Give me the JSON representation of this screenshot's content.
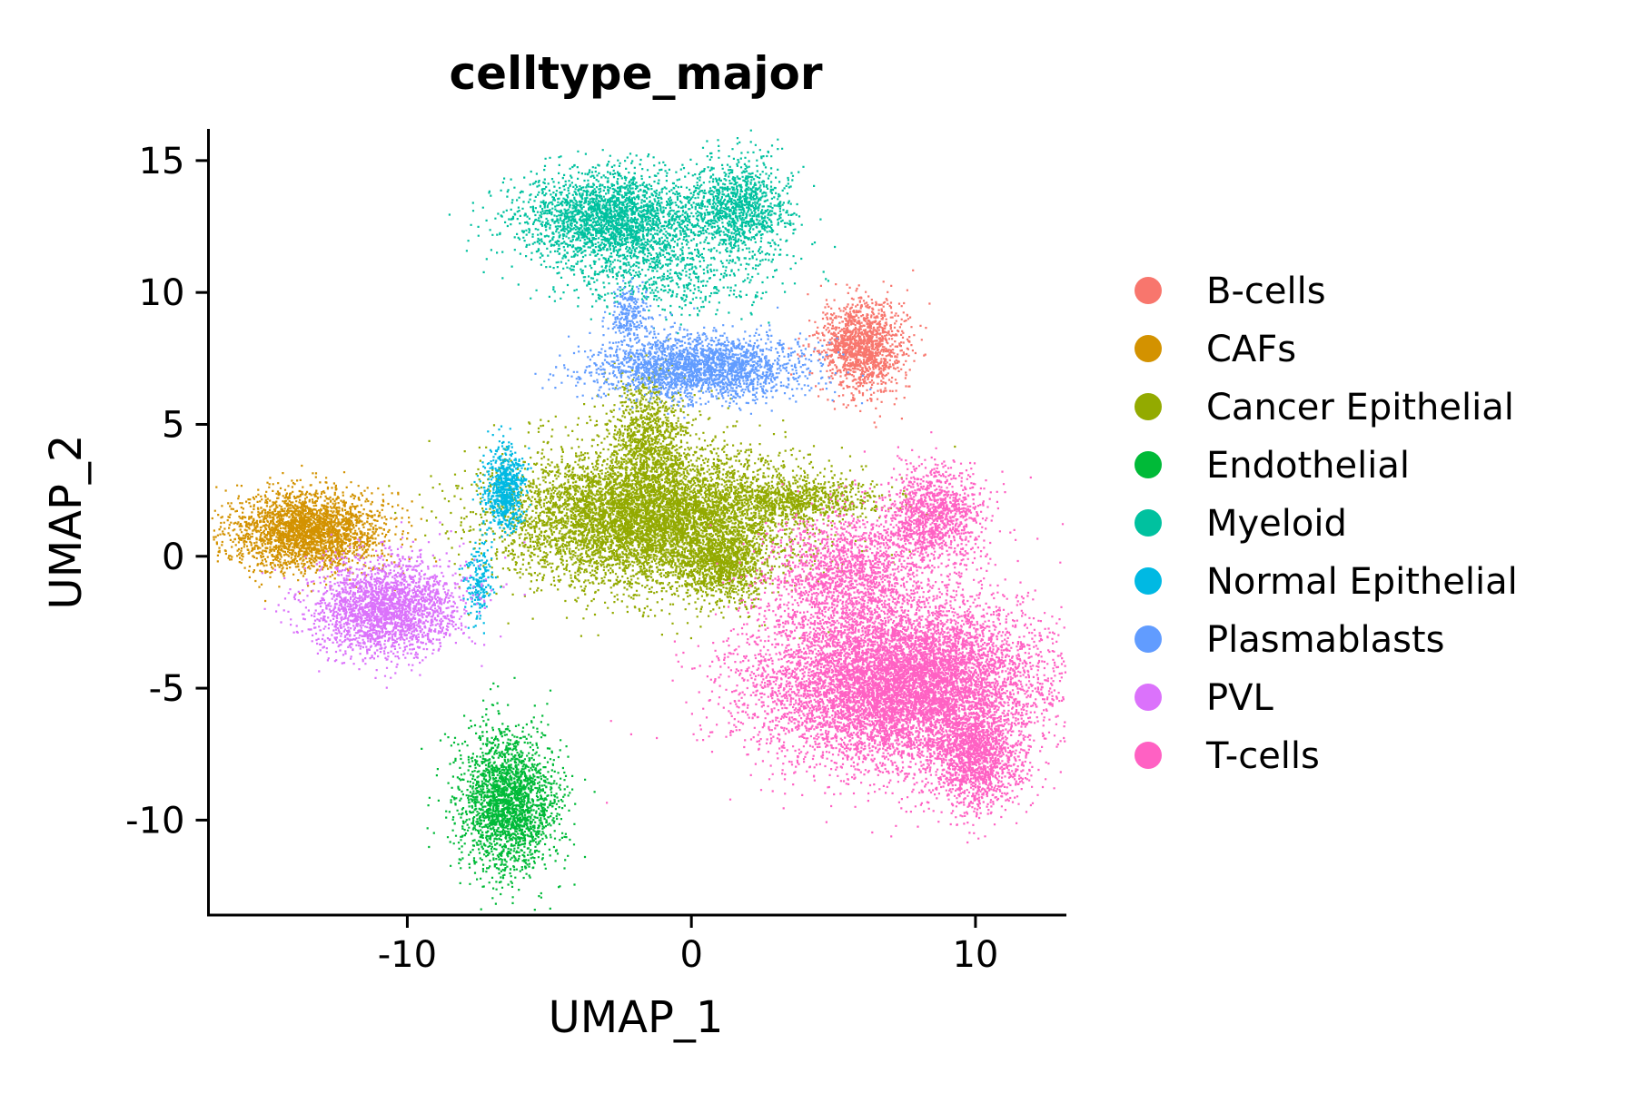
{
  "chart_data": {
    "type": "scatter",
    "title": "celltype_major",
    "xlabel": "UMAP_1",
    "ylabel": "UMAP_2",
    "xlim": [
      -17,
      13.2
    ],
    "ylim": [
      -13.6,
      16.2
    ],
    "x_ticks": [
      {
        "value": -10,
        "label": "-10"
      },
      {
        "value": 0,
        "label": "0"
      },
      {
        "value": 10,
        "label": "10"
      }
    ],
    "y_ticks": [
      {
        "value": -10,
        "label": "-10"
      },
      {
        "value": -5,
        "label": "-5"
      },
      {
        "value": 0,
        "label": "0"
      },
      {
        "value": 5,
        "label": "5"
      },
      {
        "value": 10,
        "label": "10"
      },
      {
        "value": 15,
        "label": "15"
      }
    ],
    "grid": false,
    "legend_position": "right",
    "series": [
      {
        "name": "B-cells",
        "color": "#F8766D",
        "clusters": [
          {
            "center": [
              6.0,
              8.0
            ],
            "spread": [
              0.75,
              0.85
            ],
            "n": 1400
          }
        ]
      },
      {
        "name": "CAFs",
        "color": "#D39200",
        "clusters": [
          {
            "center": [
              -13.5,
              1.0
            ],
            "spread": [
              1.3,
              0.75
            ],
            "n": 2600
          }
        ]
      },
      {
        "name": "Cancer Epithelial",
        "color": "#93AA00",
        "clusters": [
          {
            "center": [
              -1.5,
              1.5
            ],
            "spread": [
              2.6,
              1.3
            ],
            "n": 7000
          },
          {
            "center": [
              -1.5,
              4.6
            ],
            "spread": [
              0.7,
              1.2
            ],
            "n": 900
          },
          {
            "center": [
              3.8,
              2.2
            ],
            "spread": [
              1.4,
              0.4
            ],
            "n": 700
          },
          {
            "center": [
              1.0,
              -0.3
            ],
            "spread": [
              0.8,
              0.7
            ],
            "n": 900
          }
        ]
      },
      {
        "name": "Endothelial",
        "color": "#00BA38",
        "clusters": [
          {
            "center": [
              -6.5,
              -9.3
            ],
            "spread": [
              0.85,
              1.3
            ],
            "n": 2300
          }
        ]
      },
      {
        "name": "Myeloid",
        "color": "#00C19F",
        "clusters": [
          {
            "center": [
              -2.8,
              12.8
            ],
            "spread": [
              1.6,
              0.9
            ],
            "n": 2600
          },
          {
            "center": [
              1.7,
              13.3
            ],
            "spread": [
              0.9,
              0.9
            ],
            "n": 1100
          },
          {
            "center": [
              -0.6,
              10.6
            ],
            "spread": [
              1.9,
              0.7
            ],
            "n": 500
          }
        ]
      },
      {
        "name": "Normal Epithelial",
        "color": "#00B9E3",
        "clusters": [
          {
            "center": [
              -6.6,
              2.6
            ],
            "spread": [
              0.35,
              0.8
            ],
            "n": 700
          },
          {
            "center": [
              -7.5,
              -0.9
            ],
            "spread": [
              0.25,
              0.7
            ],
            "n": 200
          }
        ]
      },
      {
        "name": "Plasmablasts",
        "color": "#619CFF",
        "clusters": [
          {
            "center": [
              0.3,
              7.2
            ],
            "spread": [
              1.8,
              0.6
            ],
            "n": 2300
          },
          {
            "center": [
              -2.2,
              9.2
            ],
            "spread": [
              0.35,
              0.6
            ],
            "n": 250
          }
        ]
      },
      {
        "name": "PVL",
        "color": "#DB72FB",
        "clusters": [
          {
            "center": [
              -10.8,
              -1.9
            ],
            "spread": [
              1.3,
              0.9
            ],
            "n": 2400
          }
        ]
      },
      {
        "name": "T-cells",
        "color": "#FF61C3",
        "clusters": [
          {
            "center": [
              7.3,
              -4.7
            ],
            "spread": [
              2.5,
              1.6
            ],
            "n": 9000
          },
          {
            "center": [
              10.0,
              -7.6
            ],
            "spread": [
              0.8,
              1.0
            ],
            "n": 1400
          },
          {
            "center": [
              8.5,
              1.6
            ],
            "spread": [
              0.9,
              0.9
            ],
            "n": 1200
          },
          {
            "center": [
              5.5,
              -0.5
            ],
            "spread": [
              1.4,
              1.1
            ],
            "n": 1500
          }
        ]
      }
    ]
  }
}
